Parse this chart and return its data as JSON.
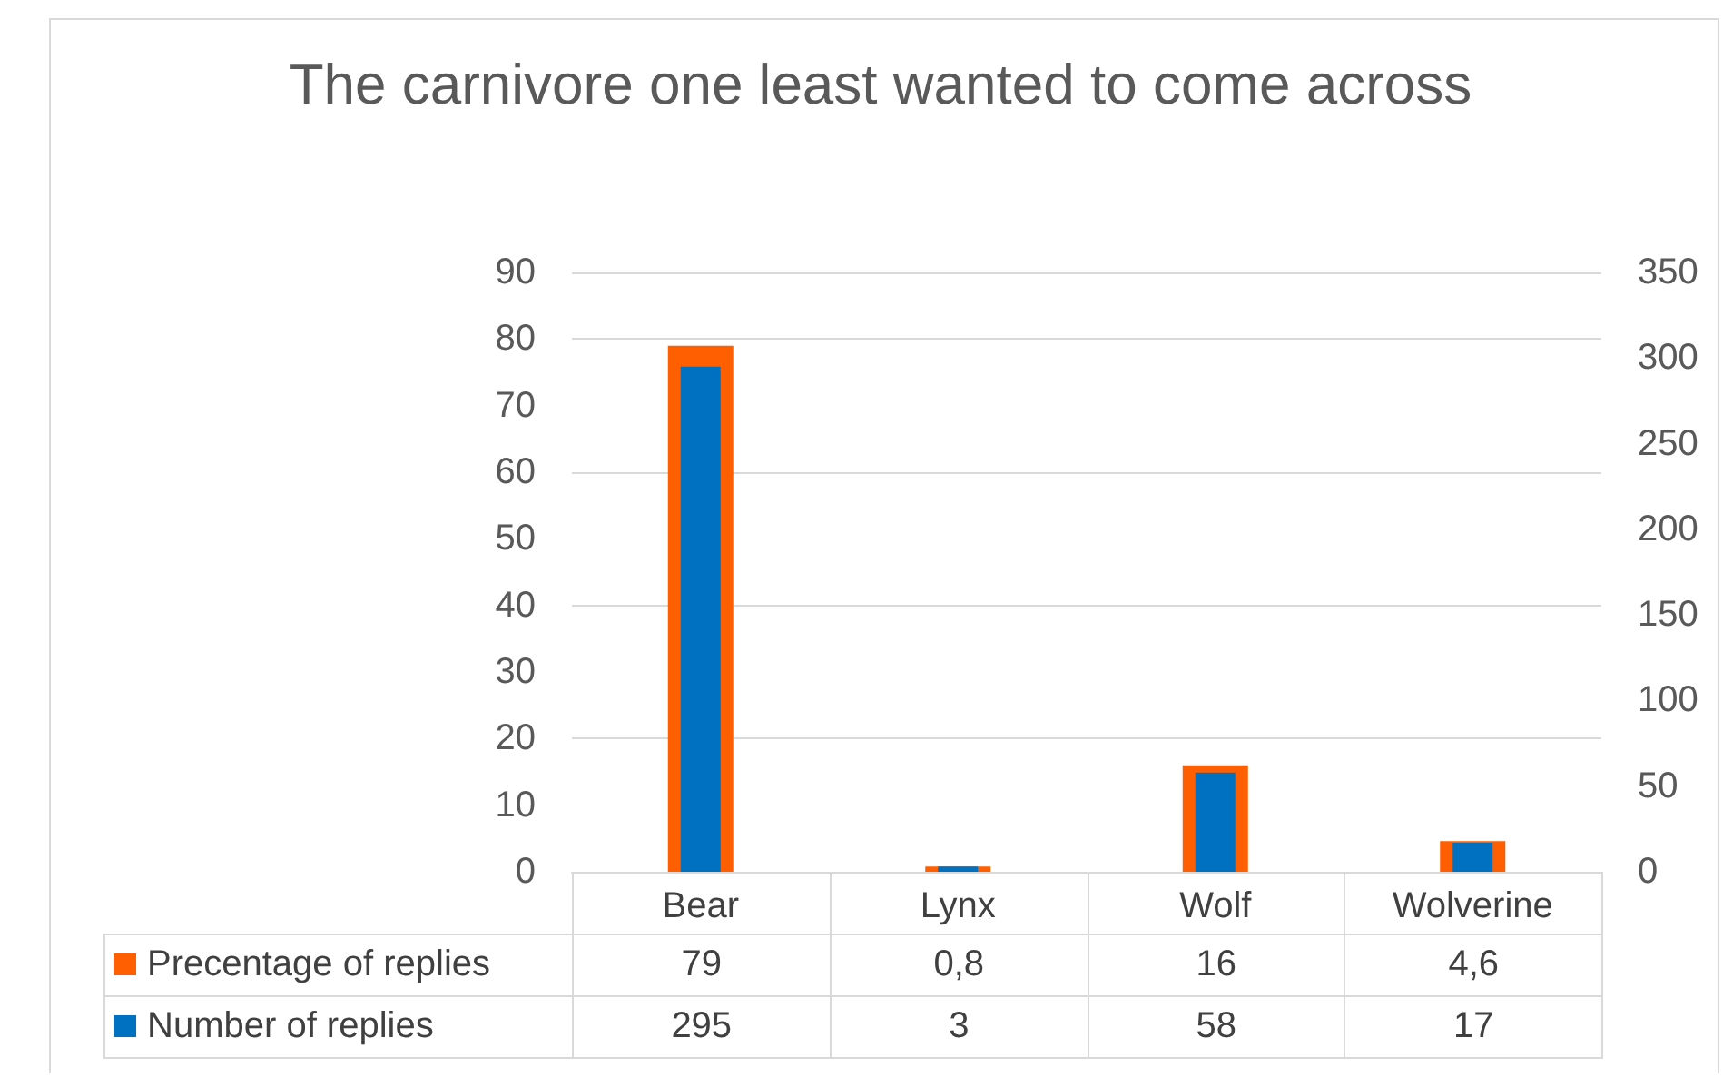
{
  "chart_data": {
    "type": "bar",
    "title": "The carnivore one least wanted to come across",
    "categories": [
      "Bear",
      "Lynx",
      "Wolf",
      "Wolverine"
    ],
    "series": [
      {
        "name": "Precentage of replies",
        "color": "#ff5f00",
        "values": [
          79,
          0.8,
          16,
          4.6
        ],
        "value_labels": [
          "79",
          "0,8",
          "16",
          "4,6"
        ]
      },
      {
        "name": "Number of replies",
        "color": "#0070c0",
        "axis": "y2",
        "values": [
          295,
          3,
          58,
          17
        ],
        "value_labels": [
          "295",
          "3",
          "58",
          "17"
        ]
      }
    ],
    "ylim": [
      0,
      90
    ],
    "yticks": [
      0,
      10,
      20,
      30,
      40,
      50,
      60,
      70,
      80,
      90
    ],
    "y2lim": [
      0,
      350
    ],
    "y2ticks": [
      0,
      50,
      100,
      150,
      200,
      250,
      300,
      350
    ],
    "grid": "y",
    "legend": "bottom left"
  }
}
